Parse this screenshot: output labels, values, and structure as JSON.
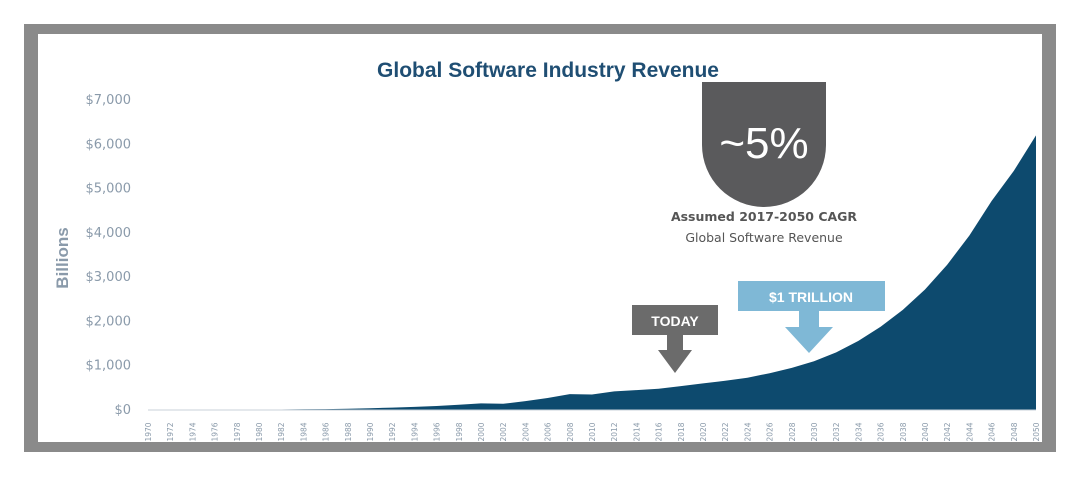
{
  "chart_data": {
    "type": "area",
    "title": "Global Software Industry Revenue",
    "ylabel": "Billions",
    "xlabel": "",
    "ylim": [
      0,
      7000
    ],
    "yticks": [
      "$0",
      "$1,000",
      "$2,000",
      "$3,000",
      "$4,000",
      "$5,000",
      "$6,000",
      "$7,000"
    ],
    "ytick_values": [
      0,
      1000,
      2000,
      3000,
      4000,
      5000,
      6000,
      7000
    ],
    "x": [
      1970,
      1972,
      1974,
      1976,
      1978,
      1980,
      1982,
      1984,
      1986,
      1988,
      1990,
      1992,
      1994,
      1996,
      1998,
      2000,
      2002,
      2004,
      2006,
      2008,
      2010,
      2012,
      2014,
      2016,
      2018,
      2020,
      2022,
      2024,
      2026,
      2028,
      2030,
      2032,
      2034,
      2036,
      2038,
      2040,
      2042,
      2044,
      2046,
      2048,
      2050
    ],
    "xtick_labels": [
      "1970",
      "1972",
      "1974",
      "1976",
      "1978",
      "1980",
      "1982",
      "1984",
      "1986",
      "1988",
      "1990",
      "1992",
      "1994",
      "1996",
      "1998",
      "2000",
      "2002",
      "2004",
      "2006",
      "2008",
      "2010",
      "2012",
      "2014",
      "2016",
      "2018",
      "2020",
      "2022",
      "2024",
      "2026",
      "2028",
      "2030",
      "2032",
      "2034",
      "2036",
      "2038",
      "2040",
      "2042",
      "2044",
      "2046",
      "2048",
      "2050"
    ],
    "series": [
      {
        "name": "Global Software Revenue",
        "color": "#0d4a6e",
        "values": [
          1,
          2,
          3,
          4,
          6,
          8,
          11,
          15,
          20,
          28,
          40,
          55,
          70,
          90,
          120,
          150,
          140,
          200,
          270,
          360,
          350,
          420,
          450,
          480,
          540,
          600,
          660,
          730,
          830,
          950,
          1100,
          1300,
          1560,
          1880,
          2260,
          2720,
          3280,
          3940,
          4720,
          5400,
          6200
        ]
      }
    ],
    "annotations": {
      "cagr_value": "~5%",
      "cagr_label": "Assumed 2017-2050 CAGR",
      "cagr_sublabel": "Global Software Revenue",
      "today_label": "TODAY",
      "today_year": 2018,
      "trillion_label": "$1 TRILLION",
      "trillion_year": 2029
    }
  },
  "colors": {
    "frame": "#8a8a8a",
    "area": "#0d4a6e",
    "today": "#6b6b6b",
    "trillion": "#7fb8d6",
    "cagr_drop": "#5a5a5c"
  }
}
